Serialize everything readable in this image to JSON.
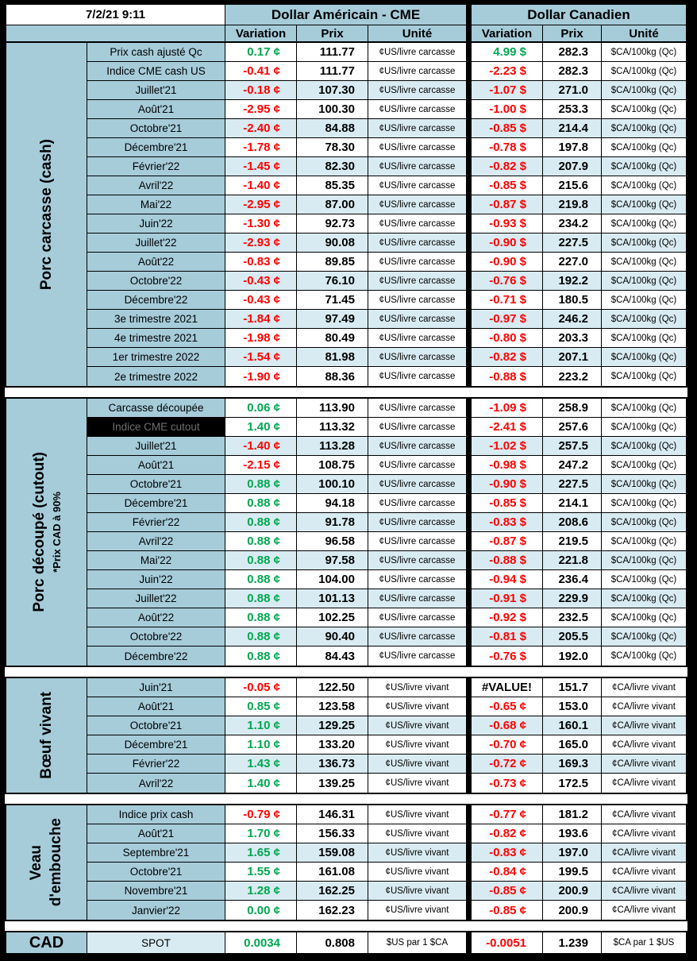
{
  "header": {
    "datetime": "7/2/21 9:11",
    "us_title": "Dollar Américain - CME",
    "ca_title": "Dollar Canadien",
    "columns": {
      "variation": "Variation",
      "prix": "Prix",
      "unite": "Unité"
    }
  },
  "colors": {
    "positive": "#00A650",
    "negative": "#FF0000",
    "header_blue": "#A6CCDA",
    "row_band_blue": "#D9EBF2",
    "selected_cell_bg": "#000000"
  },
  "sections": [
    {
      "id": "porc-carcasse-cash",
      "label_lines": [
        {
          "text": "Porc carcasse (cash)",
          "small": false
        }
      ],
      "rows": [
        {
          "label": "Prix cash ajusté Qc",
          "us": {
            "var": "0.17 ¢",
            "trend": "up",
            "prix": "111.77",
            "unit": "¢US/livre carcasse"
          },
          "ca": {
            "var": "4.99 $",
            "trend": "up",
            "prix": "282.3",
            "unit": "$CA/100kg (Qc)"
          }
        },
        {
          "label": "Indice CME cash US",
          "us": {
            "var": "-0.41 ¢",
            "trend": "down",
            "prix": "111.77",
            "unit": "¢US/livre carcasse"
          },
          "ca": {
            "var": "-2.23 $",
            "trend": "down",
            "prix": "282.3",
            "unit": "$CA/100kg (Qc)"
          }
        },
        {
          "label": "Juillet'21",
          "us": {
            "var": "-0.18 ¢",
            "trend": "down",
            "prix": "107.30",
            "unit": "¢US/livre carcasse"
          },
          "ca": {
            "var": "-1.07 $",
            "trend": "down",
            "prix": "271.0",
            "unit": "$CA/100kg (Qc)"
          }
        },
        {
          "label": "Août'21",
          "us": {
            "var": "-2.95 ¢",
            "trend": "down",
            "prix": "100.30",
            "unit": "¢US/livre carcasse"
          },
          "ca": {
            "var": "-1.00 $",
            "trend": "down",
            "prix": "253.3",
            "unit": "$CA/100kg (Qc)"
          }
        },
        {
          "label": "Octobre'21",
          "us": {
            "var": "-2.40 ¢",
            "trend": "down",
            "prix": "84.88",
            "unit": "¢US/livre carcasse"
          },
          "ca": {
            "var": "-0.85 $",
            "trend": "down",
            "prix": "214.4",
            "unit": "$CA/100kg (Qc)"
          }
        },
        {
          "label": "Décembre'21",
          "us": {
            "var": "-1.78 ¢",
            "trend": "down",
            "prix": "78.30",
            "unit": "¢US/livre carcasse"
          },
          "ca": {
            "var": "-0.78 $",
            "trend": "down",
            "prix": "197.8",
            "unit": "$CA/100kg (Qc)"
          }
        },
        {
          "label": "Février'22",
          "us": {
            "var": "-1.45 ¢",
            "trend": "down",
            "prix": "82.30",
            "unit": "¢US/livre carcasse"
          },
          "ca": {
            "var": "-0.82 $",
            "trend": "down",
            "prix": "207.9",
            "unit": "$CA/100kg (Qc)"
          }
        },
        {
          "label": "Avril'22",
          "us": {
            "var": "-1.40 ¢",
            "trend": "down",
            "prix": "85.35",
            "unit": "¢US/livre carcasse"
          },
          "ca": {
            "var": "-0.85 $",
            "trend": "down",
            "prix": "215.6",
            "unit": "$CA/100kg (Qc)"
          }
        },
        {
          "label": "Mai'22",
          "us": {
            "var": "-2.95 ¢",
            "trend": "down",
            "prix": "87.00",
            "unit": "¢US/livre carcasse"
          },
          "ca": {
            "var": "-0.87 $",
            "trend": "down",
            "prix": "219.8",
            "unit": "$CA/100kg (Qc)"
          }
        },
        {
          "label": "Juin'22",
          "us": {
            "var": "-1.30 ¢",
            "trend": "down",
            "prix": "92.73",
            "unit": "¢US/livre carcasse"
          },
          "ca": {
            "var": "-0.93 $",
            "trend": "down",
            "prix": "234.2",
            "unit": "$CA/100kg (Qc)"
          }
        },
        {
          "label": "Juillet'22",
          "us": {
            "var": "-2.93 ¢",
            "trend": "down",
            "prix": "90.08",
            "unit": "¢US/livre carcasse"
          },
          "ca": {
            "var": "-0.90 $",
            "trend": "down",
            "prix": "227.5",
            "unit": "$CA/100kg (Qc)"
          }
        },
        {
          "label": "Août'22",
          "us": {
            "var": "-0.83 ¢",
            "trend": "down",
            "prix": "89.85",
            "unit": "¢US/livre carcasse"
          },
          "ca": {
            "var": "-0.90 $",
            "trend": "down",
            "prix": "227.0",
            "unit": "$CA/100kg (Qc)"
          }
        },
        {
          "label": "Octobre'22",
          "us": {
            "var": "-0.43 ¢",
            "trend": "down",
            "prix": "76.10",
            "unit": "¢US/livre carcasse"
          },
          "ca": {
            "var": "-0.76 $",
            "trend": "down",
            "prix": "192.2",
            "unit": "$CA/100kg (Qc)"
          }
        },
        {
          "label": "Décembre'22",
          "us": {
            "var": "-0.43 ¢",
            "trend": "down",
            "prix": "71.45",
            "unit": "¢US/livre carcasse"
          },
          "ca": {
            "var": "-0.71 $",
            "trend": "down",
            "prix": "180.5",
            "unit": "$CA/100kg (Qc)"
          }
        },
        {
          "label": "3e trimestre 2021",
          "us": {
            "var": "-1.84 ¢",
            "trend": "down",
            "prix": "97.49",
            "unit": "¢US/livre carcasse"
          },
          "ca": {
            "var": "-0.97 $",
            "trend": "down",
            "prix": "246.2",
            "unit": "$CA/100kg (Qc)"
          }
        },
        {
          "label": "4e trimestre 2021",
          "us": {
            "var": "-1.98 ¢",
            "trend": "down",
            "prix": "80.49",
            "unit": "¢US/livre carcasse"
          },
          "ca": {
            "var": "-0.80 $",
            "trend": "down",
            "prix": "203.3",
            "unit": "$CA/100kg (Qc)"
          }
        },
        {
          "label": "1er trimestre 2022",
          "us": {
            "var": "-1.54 ¢",
            "trend": "down",
            "prix": "81.98",
            "unit": "¢US/livre carcasse"
          },
          "ca": {
            "var": "-0.82 $",
            "trend": "down",
            "prix": "207.1",
            "unit": "$CA/100kg (Qc)"
          }
        },
        {
          "label": "2e trimestre 2022",
          "us": {
            "var": "-1.90 ¢",
            "trend": "down",
            "prix": "88.36",
            "unit": "¢US/livre carcasse"
          },
          "ca": {
            "var": "-0.88 $",
            "trend": "down",
            "prix": "223.2",
            "unit": "$CA/100kg (Qc)"
          }
        }
      ]
    },
    {
      "id": "porc-decoupe-cutout",
      "label_lines": [
        {
          "text": "Porc découpé (cutout)",
          "small": false
        },
        {
          "text": "*Prix CAD à 90%",
          "small": true
        }
      ],
      "rows": [
        {
          "label": "Carcasse découpée",
          "us": {
            "var": "0.06 ¢",
            "trend": "up",
            "prix": "113.90",
            "unit": "¢US/livre carcasse"
          },
          "ca": {
            "var": "-1.09 $",
            "trend": "down",
            "prix": "258.9",
            "unit": "$CA/100kg (Qc)"
          }
        },
        {
          "label": "Indice CME cutout",
          "selected": true,
          "us": {
            "var": "1.40 ¢",
            "trend": "up",
            "prix": "113.32",
            "unit": "¢US/livre carcasse"
          },
          "ca": {
            "var": "-2.41 $",
            "trend": "down",
            "prix": "257.6",
            "unit": "$CA/100kg (Qc)"
          }
        },
        {
          "label": "Juillet'21",
          "us": {
            "var": "-1.40 ¢",
            "trend": "down",
            "prix": "113.28",
            "unit": "¢US/livre carcasse"
          },
          "ca": {
            "var": "-1.02 $",
            "trend": "down",
            "prix": "257.5",
            "unit": "$CA/100kg (Qc)"
          }
        },
        {
          "label": "Août'21",
          "us": {
            "var": "-2.15 ¢",
            "trend": "down",
            "prix": "108.75",
            "unit": "¢US/livre carcasse"
          },
          "ca": {
            "var": "-0.98 $",
            "trend": "down",
            "prix": "247.2",
            "unit": "$CA/100kg (Qc)"
          }
        },
        {
          "label": "Octobre'21",
          "us": {
            "var": "0.88 ¢",
            "trend": "up",
            "prix": "100.10",
            "unit": "¢US/livre carcasse"
          },
          "ca": {
            "var": "-0.90 $",
            "trend": "down",
            "prix": "227.5",
            "unit": "$CA/100kg (Qc)"
          }
        },
        {
          "label": "Décembre'21",
          "us": {
            "var": "0.88 ¢",
            "trend": "up",
            "prix": "94.18",
            "unit": "¢US/livre carcasse"
          },
          "ca": {
            "var": "-0.85 $",
            "trend": "down",
            "prix": "214.1",
            "unit": "$CA/100kg (Qc)"
          }
        },
        {
          "label": "Février'22",
          "us": {
            "var": "0.88 ¢",
            "trend": "up",
            "prix": "91.78",
            "unit": "¢US/livre carcasse"
          },
          "ca": {
            "var": "-0.83 $",
            "trend": "down",
            "prix": "208.6",
            "unit": "$CA/100kg (Qc)"
          }
        },
        {
          "label": "Avril'22",
          "us": {
            "var": "0.88 ¢",
            "trend": "up",
            "prix": "96.58",
            "unit": "¢US/livre carcasse"
          },
          "ca": {
            "var": "-0.87 $",
            "trend": "down",
            "prix": "219.5",
            "unit": "$CA/100kg (Qc)"
          }
        },
        {
          "label": "Mai'22",
          "us": {
            "var": "0.88 ¢",
            "trend": "up",
            "prix": "97.58",
            "unit": "¢US/livre carcasse"
          },
          "ca": {
            "var": "-0.88 $",
            "trend": "down",
            "prix": "221.8",
            "unit": "$CA/100kg (Qc)"
          }
        },
        {
          "label": "Juin'22",
          "us": {
            "var": "0.88 ¢",
            "trend": "up",
            "prix": "104.00",
            "unit": "¢US/livre carcasse"
          },
          "ca": {
            "var": "-0.94 $",
            "trend": "down",
            "prix": "236.4",
            "unit": "$CA/100kg (Qc)"
          }
        },
        {
          "label": "Juillet'22",
          "us": {
            "var": "0.88 ¢",
            "trend": "up",
            "prix": "101.13",
            "unit": "¢US/livre carcasse"
          },
          "ca": {
            "var": "-0.91 $",
            "trend": "down",
            "prix": "229.9",
            "unit": "$CA/100kg (Qc)"
          }
        },
        {
          "label": "Août'22",
          "us": {
            "var": "0.88 ¢",
            "trend": "up",
            "prix": "102.25",
            "unit": "¢US/livre carcasse"
          },
          "ca": {
            "var": "-0.92 $",
            "trend": "down",
            "prix": "232.5",
            "unit": "$CA/100kg (Qc)"
          }
        },
        {
          "label": "Octobre'22",
          "us": {
            "var": "0.88 ¢",
            "trend": "up",
            "prix": "90.40",
            "unit": "¢US/livre carcasse"
          },
          "ca": {
            "var": "-0.81 $",
            "trend": "down",
            "prix": "205.5",
            "unit": "$CA/100kg (Qc)"
          }
        },
        {
          "label": "Décembre'22",
          "us": {
            "var": "0.88 ¢",
            "trend": "up",
            "prix": "84.43",
            "unit": "¢US/livre carcasse"
          },
          "ca": {
            "var": "-0.76 $",
            "trend": "down",
            "prix": "192.0",
            "unit": "$CA/100kg (Qc)"
          }
        }
      ]
    },
    {
      "id": "boeuf-vivant",
      "label_lines": [
        {
          "text": "Bœuf vivant",
          "small": false
        }
      ],
      "rows": [
        {
          "label": "Juin'21",
          "us": {
            "var": "-0.05 ¢",
            "trend": "down",
            "prix": "122.50",
            "unit": "¢US/livre vivant"
          },
          "ca": {
            "var": "#VALUE!",
            "trend": "error",
            "prix": "151.7",
            "unit": "¢CA/livre vivant"
          }
        },
        {
          "label": "Août'21",
          "us": {
            "var": "0.85 ¢",
            "trend": "up",
            "prix": "123.58",
            "unit": "¢US/livre vivant"
          },
          "ca": {
            "var": "-0.65 ¢",
            "trend": "down",
            "prix": "153.0",
            "unit": "¢CA/livre vivant"
          }
        },
        {
          "label": "Octobre'21",
          "us": {
            "var": "1.10 ¢",
            "trend": "up",
            "prix": "129.25",
            "unit": "¢US/livre vivant"
          },
          "ca": {
            "var": "-0.68 ¢",
            "trend": "down",
            "prix": "160.1",
            "unit": "¢CA/livre vivant"
          }
        },
        {
          "label": "Décembre'21",
          "us": {
            "var": "1.10 ¢",
            "trend": "up",
            "prix": "133.20",
            "unit": "¢US/livre vivant"
          },
          "ca": {
            "var": "-0.70 ¢",
            "trend": "down",
            "prix": "165.0",
            "unit": "¢CA/livre vivant"
          }
        },
        {
          "label": "Février'22",
          "us": {
            "var": "1.43 ¢",
            "trend": "up",
            "prix": "136.73",
            "unit": "¢US/livre vivant"
          },
          "ca": {
            "var": "-0.72 ¢",
            "trend": "down",
            "prix": "169.3",
            "unit": "¢CA/livre vivant"
          }
        },
        {
          "label": "Avril'22",
          "us": {
            "var": "1.40 ¢",
            "trend": "up",
            "prix": "139.25",
            "unit": "¢US/livre vivant"
          },
          "ca": {
            "var": "-0.73 ¢",
            "trend": "down",
            "prix": "172.5",
            "unit": "¢CA/livre vivant"
          }
        }
      ]
    },
    {
      "id": "veau-embouche",
      "label_lines": [
        {
          "text": "Veau",
          "small": false
        },
        {
          "text": "d'embouche",
          "small": false
        }
      ],
      "rows": [
        {
          "label": "Indice prix cash",
          "us": {
            "var": "-0.79 ¢",
            "trend": "down",
            "prix": "146.31",
            "unit": "¢US/livre vivant"
          },
          "ca": {
            "var": "-0.77 ¢",
            "trend": "down",
            "prix": "181.2",
            "unit": "¢CA/livre vivant"
          }
        },
        {
          "label": "Août'21",
          "us": {
            "var": "1.70 ¢",
            "trend": "up",
            "prix": "156.33",
            "unit": "¢US/livre vivant"
          },
          "ca": {
            "var": "-0.82 ¢",
            "trend": "down",
            "prix": "193.6",
            "unit": "¢CA/livre vivant"
          }
        },
        {
          "label": "Septembre'21",
          "us": {
            "var": "1.65 ¢",
            "trend": "up",
            "prix": "159.08",
            "unit": "¢US/livre vivant"
          },
          "ca": {
            "var": "-0.83 ¢",
            "trend": "down",
            "prix": "197.0",
            "unit": "¢CA/livre vivant"
          }
        },
        {
          "label": "Octobre'21",
          "us": {
            "var": "1.55 ¢",
            "trend": "up",
            "prix": "161.08",
            "unit": "¢US/livre vivant"
          },
          "ca": {
            "var": "-0.84 ¢",
            "trend": "down",
            "prix": "199.5",
            "unit": "¢CA/livre vivant"
          }
        },
        {
          "label": "Novembre'21",
          "us": {
            "var": "1.28 ¢",
            "trend": "up",
            "prix": "162.25",
            "unit": "¢US/livre vivant"
          },
          "ca": {
            "var": "-0.85 ¢",
            "trend": "down",
            "prix": "200.9",
            "unit": "¢CA/livre vivant"
          }
        },
        {
          "label": "Janvier'22",
          "us": {
            "var": "0.00 ¢",
            "trend": "up",
            "prix": "162.23",
            "unit": "¢US/livre vivant"
          },
          "ca": {
            "var": "-0.85 ¢",
            "trend": "down",
            "prix": "200.9",
            "unit": "¢CA/livre vivant"
          }
        }
      ]
    },
    {
      "id": "cad",
      "horizontal_label": true,
      "label_lines": [
        {
          "text": "CAD",
          "small": false
        }
      ],
      "rows": [
        {
          "label": "SPOT",
          "us": {
            "var": "0.0034",
            "trend": "up",
            "prix": "0.808",
            "unit": "$US par 1 $CA"
          },
          "ca": {
            "var": "-0.0051",
            "trend": "down",
            "prix": "1.239",
            "unit": "$CA par 1 $US"
          }
        }
      ]
    }
  ]
}
